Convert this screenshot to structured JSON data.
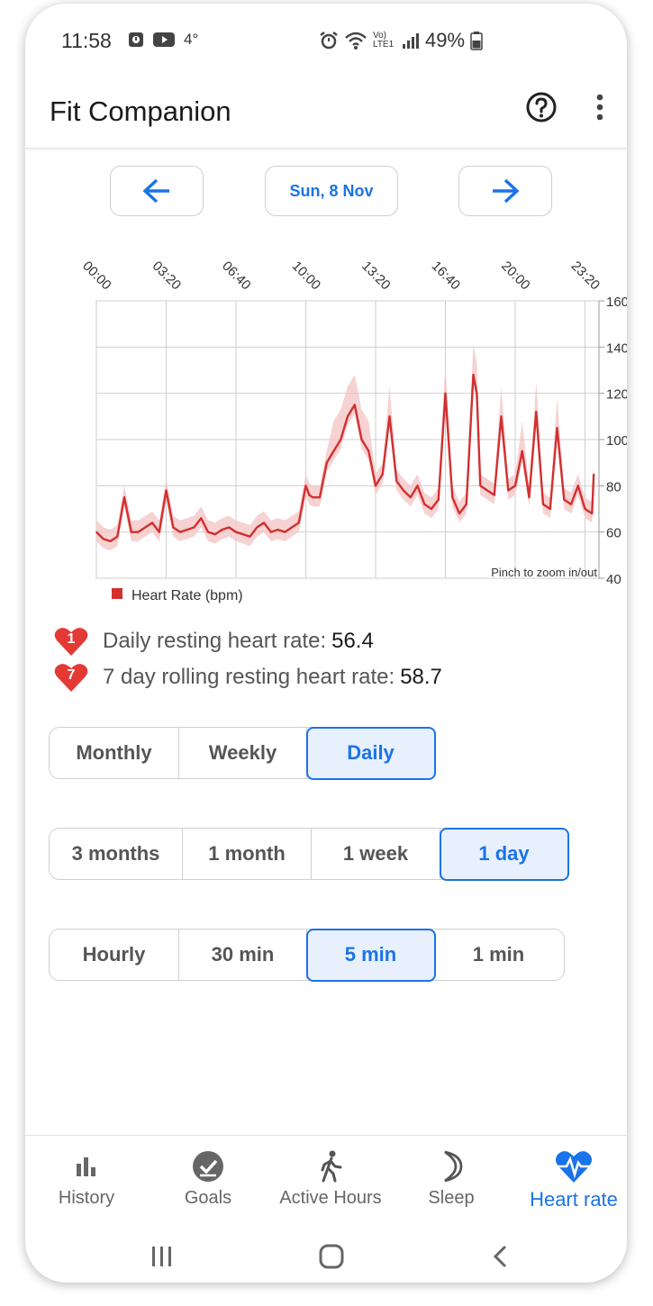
{
  "status_bar": {
    "time": "11:58",
    "temperature": "4°",
    "network_label": "Vo) LTE1",
    "battery": "49%"
  },
  "app_bar": {
    "title": "Fit Companion",
    "help_icon": "question-circle-icon",
    "menu_icon": "more-vert-icon"
  },
  "date_nav": {
    "date_label": "Sun, 8 Nov",
    "prev_icon": "arrow-left-icon",
    "next_icon": "arrow-right-icon"
  },
  "chart_data": {
    "type": "line",
    "x_ticks": [
      "00:00",
      "03:20",
      "06:40",
      "10:00",
      "13:20",
      "16:40",
      "20:00",
      "23:20"
    ],
    "y_ticks": [
      "160",
      "140",
      "120",
      "100",
      "80",
      "60",
      "40"
    ],
    "ylim": [
      40,
      160
    ],
    "legend": "Heart Rate (bpm)",
    "legend_color": "#d32f2f",
    "band_color": "#f4c7c7",
    "annotation": "Pinch to zoom in/out",
    "series": [
      {
        "name": "Heart Rate (bpm)",
        "x_minutes": [
          0,
          20,
          40,
          60,
          80,
          100,
          120,
          140,
          160,
          180,
          200,
          220,
          240,
          260,
          280,
          300,
          320,
          340,
          360,
          380,
          400,
          420,
          440,
          460,
          480,
          500,
          520,
          540,
          560,
          580,
          600,
          610,
          620,
          640,
          660,
          680,
          700,
          720,
          740,
          760,
          780,
          800,
          820,
          840,
          860,
          880,
          900,
          920,
          940,
          960,
          980,
          1000,
          1020,
          1040,
          1060,
          1080,
          1090,
          1100,
          1120,
          1140,
          1160,
          1180,
          1200,
          1220,
          1240,
          1260,
          1280,
          1300,
          1320,
          1340,
          1360,
          1380,
          1400,
          1420,
          1425
        ],
        "values": [
          60,
          57,
          56,
          58,
          75,
          60,
          60,
          62,
          64,
          60,
          78,
          62,
          60,
          61,
          62,
          66,
          60,
          59,
          61,
          62,
          60,
          59,
          58,
          62,
          64,
          60,
          61,
          60,
          62,
          64,
          80,
          76,
          75,
          75,
          90,
          95,
          100,
          110,
          115,
          100,
          95,
          80,
          85,
          110,
          82,
          78,
          75,
          80,
          72,
          70,
          74,
          120,
          75,
          68,
          72,
          128,
          120,
          80,
          78,
          76,
          110,
          78,
          80,
          95,
          75,
          112,
          72,
          70,
          105,
          74,
          72,
          80,
          70,
          68,
          85
        ]
      }
    ]
  },
  "stats": {
    "daily_badge": "1",
    "daily_label": "Daily resting heart rate:",
    "daily_value": "56.4",
    "rolling_badge": "7",
    "rolling_label": "7 day rolling resting heart rate:",
    "rolling_value": "58.7"
  },
  "aggregation": {
    "options": [
      "Monthly",
      "Weekly",
      "Daily"
    ],
    "selected": "Daily"
  },
  "range": {
    "options": [
      "3 months",
      "1 month",
      "1 week",
      "1 day"
    ],
    "selected": "1 day"
  },
  "granularity": {
    "options": [
      "Hourly",
      "30 min",
      "5 min",
      "1 min"
    ],
    "selected": "5 min"
  },
  "bottom_nav": {
    "items": [
      {
        "label": "History",
        "icon": "bar-chart-icon"
      },
      {
        "label": "Goals",
        "icon": "check-circle-icon"
      },
      {
        "label": "Active Hours",
        "icon": "walking-person-icon"
      },
      {
        "label": "Sleep",
        "icon": "moon-icon"
      },
      {
        "label": "Heart rate",
        "icon": "heart-pulse-icon"
      }
    ],
    "active": "Heart rate"
  },
  "colors": {
    "accent": "#1a73e8",
    "heart_red": "#e53935",
    "chart_line": "#d32f2f"
  }
}
